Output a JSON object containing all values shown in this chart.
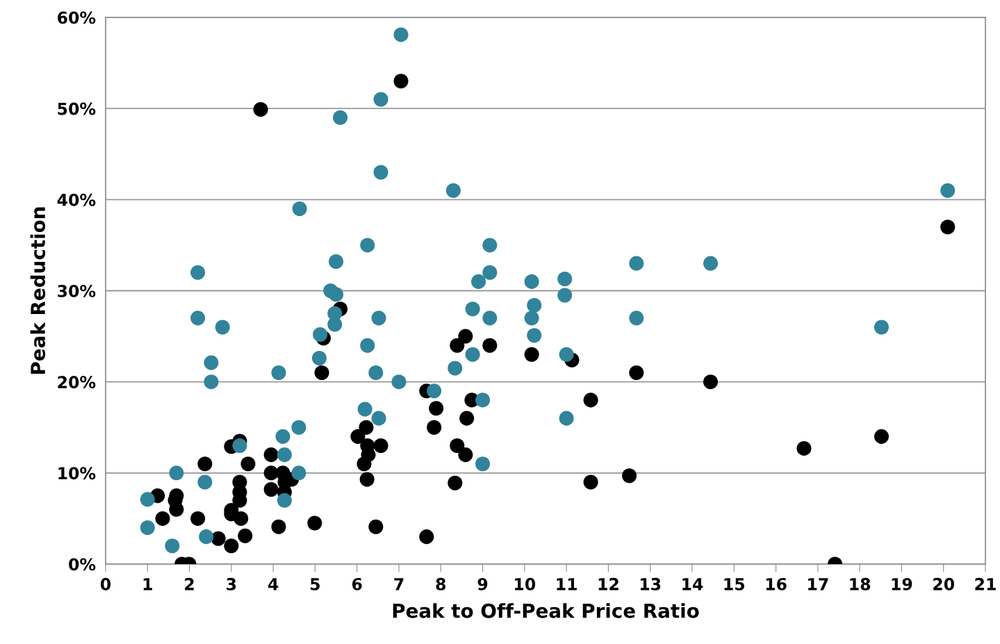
{
  "chart_data": {
    "type": "scatter",
    "xlabel": "Peak to Off-Peak Price Ratio",
    "ylabel": "Peak Reduction",
    "xlim": [
      0,
      21
    ],
    "xticks": [
      0,
      1,
      2,
      3,
      4,
      5,
      6,
      7,
      8,
      9,
      10,
      11,
      12,
      13,
      14,
      15,
      16,
      17,
      18,
      19,
      20,
      21
    ],
    "ylim": [
      0,
      60
    ],
    "yticks": [
      {
        "value": 0,
        "label": "0%"
      },
      {
        "value": 10,
        "label": "10%"
      },
      {
        "value": 20,
        "label": "20%"
      },
      {
        "value": 30,
        "label": "30%"
      },
      {
        "value": 40,
        "label": "40%"
      },
      {
        "value": 50,
        "label": "50%"
      },
      {
        "value": 60,
        "label": "60%"
      }
    ],
    "grid": "y",
    "marker": "circle",
    "series": [
      {
        "color": "#000000",
        "x": [
          7.05,
          3.7,
          20.1,
          5.6,
          5.2,
          5.16,
          8.39,
          8.59,
          9.17,
          10.17,
          11.13,
          12.67,
          14.44,
          7.66,
          7.89,
          8.74,
          11.58,
          7.84,
          8.62,
          6.02,
          6.22,
          6.25,
          6.57,
          6.27,
          6.17,
          6.24,
          6.45,
          8.39,
          8.59,
          8.34,
          11.58,
          12.5,
          16.67,
          18.52,
          17.41,
          7.66,
          4.99,
          4.13,
          3.95,
          3.95,
          3.95,
          4.23,
          4.28,
          4.44,
          4.27,
          3.4,
          3.2,
          3.0,
          3.2,
          3.2,
          3.2,
          3.0,
          3.0,
          3.23,
          3.33,
          3.0,
          2.69,
          2.37,
          2.2,
          1.69,
          1.69,
          1.24,
          1.36,
          1.66,
          1.82,
          1.99
        ],
        "values": [
          53.0,
          49.9,
          37.0,
          28.0,
          24.8,
          21.0,
          24.0,
          25.0,
          24.0,
          23.0,
          22.4,
          21.0,
          20.0,
          19.0,
          17.1,
          18.0,
          18.0,
          15.0,
          16.0,
          14.0,
          15.0,
          13.0,
          13.0,
          12.0,
          11.0,
          9.3,
          4.1,
          13.0,
          12.0,
          8.9,
          9.0,
          9.7,
          12.7,
          14.0,
          0,
          3.0,
          4.5,
          4.1,
          12.0,
          10.0,
          8.2,
          10.0,
          9.0,
          9.3,
          7.9,
          11.0,
          13.5,
          12.9,
          9.0,
          7.9,
          7.0,
          5.9,
          5.5,
          5.0,
          3.1,
          2.0,
          2.8,
          11.0,
          5.0,
          7.5,
          6.0,
          7.5,
          5.0,
          7.0,
          0,
          0
        ]
      },
      {
        "color": "#31849b",
        "x": [
          7.05,
          6.57,
          5.6,
          6.57,
          8.3,
          20.1,
          4.63,
          6.25,
          9.17,
          2.2,
          5.5,
          9.17,
          12.67,
          14.44,
          5.37,
          5.5,
          8.9,
          10.17,
          10.96,
          10.23,
          10.96,
          2.2,
          2.79,
          5.47,
          5.47,
          6.52,
          8.76,
          9.17,
          10.17,
          12.67,
          18.52,
          5.12,
          10.23,
          2.52,
          2.52,
          5.1,
          6.25,
          8.76,
          11.0,
          8.34,
          4.13,
          6.45,
          7.0,
          7.84,
          9.0,
          6.19,
          6.52,
          11.0,
          4.61,
          4.23,
          3.2,
          4.27,
          1.69,
          4.61,
          9.0,
          1.0,
          4.27,
          2.37,
          1.0,
          2.4,
          1.59
        ],
        "values": [
          58.1,
          51.0,
          49.0,
          43.0,
          41.0,
          41.0,
          39.0,
          35.0,
          35.0,
          32.0,
          33.2,
          32.0,
          33.0,
          33.0,
          30.0,
          29.6,
          31.0,
          31.0,
          31.3,
          28.4,
          29.5,
          27.0,
          26.0,
          27.5,
          26.3,
          27.0,
          28.0,
          27.0,
          27.0,
          27.0,
          26.0,
          25.2,
          25.1,
          22.1,
          20.0,
          22.6,
          24.0,
          23.0,
          23.0,
          21.5,
          21.0,
          21.0,
          20.0,
          19.0,
          18.0,
          17.0,
          16.0,
          16.0,
          15.0,
          14.0,
          13.0,
          12.0,
          10.0,
          10.0,
          11.0,
          7.1,
          7.0,
          9.0,
          4.0,
          3.0,
          2.0
        ]
      }
    ]
  }
}
